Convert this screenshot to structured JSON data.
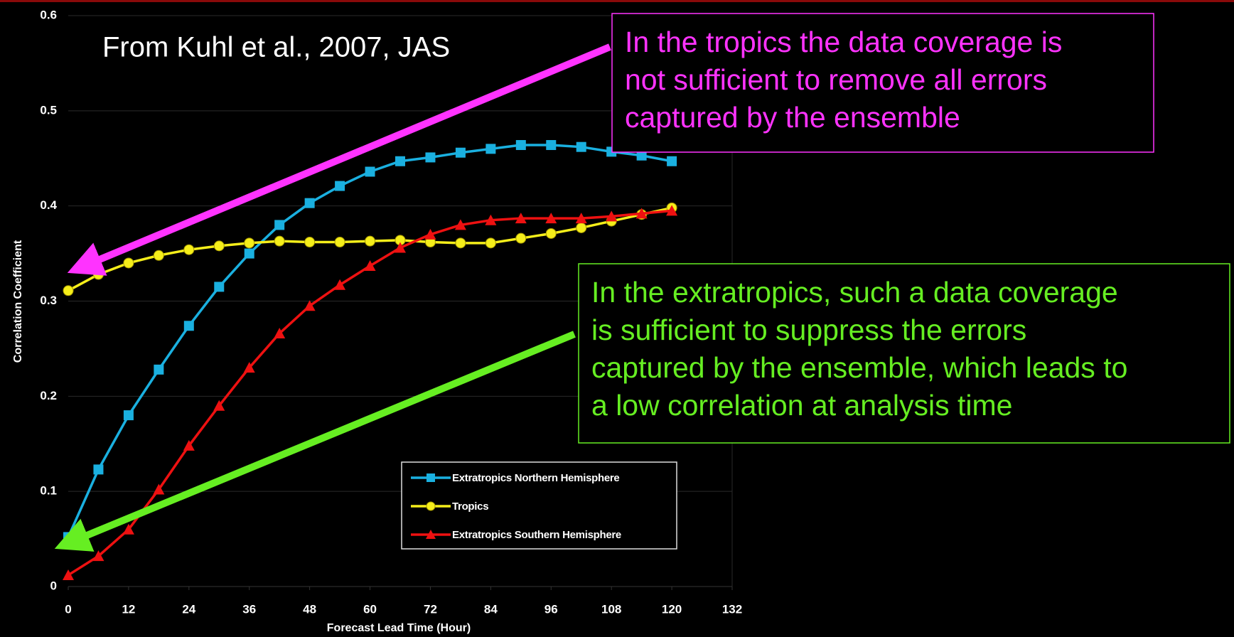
{
  "chart_data": {
    "type": "line",
    "source_note": "From Kuhl et al., 2007, JAS",
    "x_label": "Forecast Lead Time (Hour)",
    "y_label": "Correlation Coefficient",
    "x": [
      0,
      6,
      12,
      18,
      24,
      30,
      36,
      42,
      48,
      54,
      60,
      66,
      72,
      78,
      84,
      90,
      96,
      102,
      108,
      114,
      120
    ],
    "series": [
      {
        "name": "Extratropics Northern Hemisphere",
        "color": "#1ab0e0",
        "marker": "square",
        "values": [
          0.052,
          0.123,
          0.18,
          0.228,
          0.274,
          0.315,
          0.35,
          0.38,
          0.403,
          0.421,
          0.436,
          0.447,
          0.451,
          0.456,
          0.46,
          0.464,
          0.464,
          0.462,
          0.457,
          0.453,
          0.447
        ]
      },
      {
        "name": "Tropics",
        "color": "#f5ee1a",
        "marker": "circle",
        "values": [
          0.311,
          0.328,
          0.34,
          0.348,
          0.354,
          0.358,
          0.361,
          0.363,
          0.362,
          0.362,
          0.363,
          0.364,
          0.362,
          0.361,
          0.361,
          0.366,
          0.371,
          0.377,
          0.384,
          0.391,
          0.398
        ]
      },
      {
        "name": "Extratropics Southern Hemisphere",
        "color": "#ee1111",
        "marker": "triangle",
        "values": [
          0.012,
          0.032,
          0.06,
          0.102,
          0.148,
          0.19,
          0.23,
          0.266,
          0.295,
          0.317,
          0.337,
          0.356,
          0.37,
          0.38,
          0.385,
          0.387,
          0.387,
          0.387,
          0.389,
          0.392,
          0.395
        ]
      }
    ],
    "xlim": [
      0,
      132
    ],
    "xticks": [
      0,
      12,
      24,
      36,
      48,
      60,
      72,
      84,
      96,
      108,
      120,
      132
    ],
    "ylim": [
      0,
      0.6
    ],
    "yticks": [
      0,
      0.1,
      0.2,
      0.3,
      0.4,
      0.5,
      0.6
    ],
    "grid": true,
    "annotations": [
      {
        "color": "#ff33ff",
        "lines": [
          "In the tropics the data coverage is",
          "not sufficient to remove all errors",
          "captured by the ensemble"
        ]
      },
      {
        "color": "#66ee22",
        "lines": [
          "In the extratropics, such a data coverage",
          "is sufficient to suppress the errors",
          "captured by the ensemble, which leads to",
          "a low correlation at analysis time"
        ]
      }
    ]
  }
}
